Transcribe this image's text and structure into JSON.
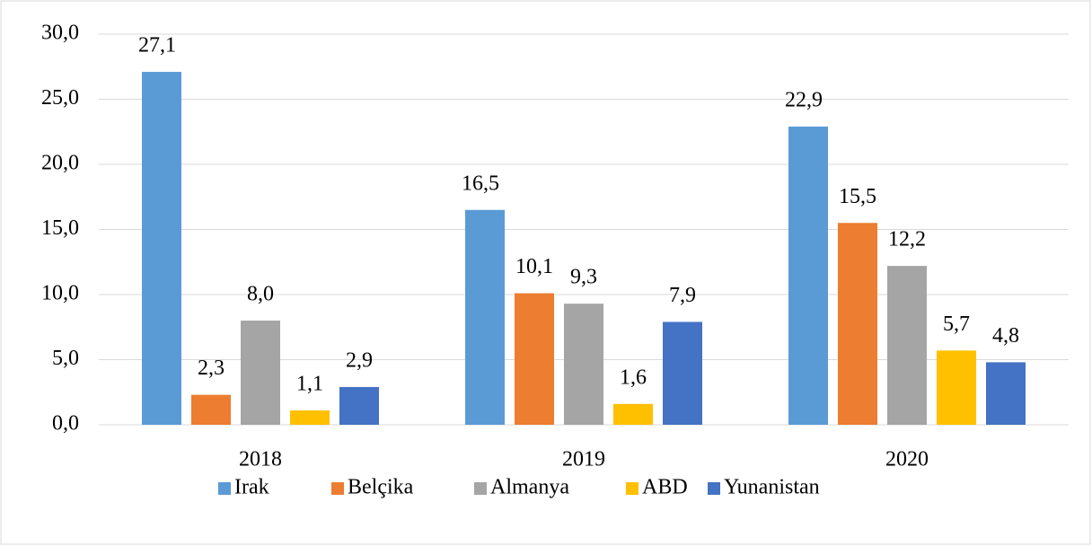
{
  "chart_data": {
    "type": "bar",
    "categories": [
      "2018",
      "2019",
      "2020"
    ],
    "series": [
      {
        "name": "Irak",
        "color": "#5b9bd5",
        "values": [
          27.1,
          16.5,
          22.9
        ],
        "value_labels": [
          "27,1",
          "16,5",
          "22,9"
        ]
      },
      {
        "name": "Belçika",
        "color": "#ed7d31",
        "values": [
          2.3,
          10.1,
          15.5
        ],
        "value_labels": [
          "2,3",
          "10,1",
          "15,5"
        ]
      },
      {
        "name": "Almanya",
        "color": "#a5a5a5",
        "values": [
          8.0,
          9.3,
          12.2
        ],
        "value_labels": [
          "8,0",
          "9,3",
          "12,2"
        ]
      },
      {
        "name": "ABD",
        "color": "#ffc000",
        "values": [
          1.1,
          1.6,
          5.7
        ],
        "value_labels": [
          "1,1",
          "1,6",
          "5,7"
        ]
      },
      {
        "name": "Yunanistan",
        "color": "#4472c4",
        "values": [
          2.9,
          7.9,
          4.8
        ],
        "value_labels": [
          "2,9",
          "7,9",
          "4,8"
        ]
      }
    ],
    "ylim": [
      0,
      30
    ],
    "yticks": [
      {
        "value": 0,
        "label": "0,0"
      },
      {
        "value": 5,
        "label": "5,0"
      },
      {
        "value": 10,
        "label": "10,0"
      },
      {
        "value": 15,
        "label": "15,0"
      },
      {
        "value": 20,
        "label": "20,0"
      },
      {
        "value": 25,
        "label": "25,0"
      },
      {
        "value": 30,
        "label": "30,0"
      }
    ],
    "grid": true,
    "legend": "bottom"
  }
}
